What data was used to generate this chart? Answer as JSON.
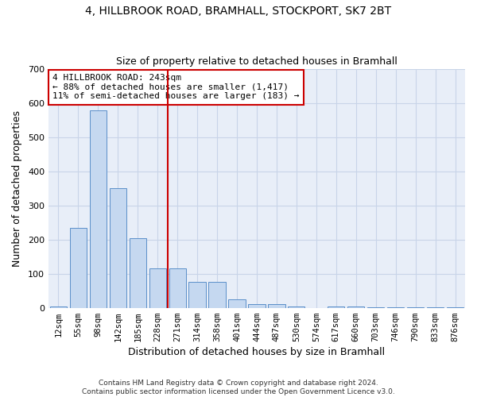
{
  "title1": "4, HILLBROOK ROAD, BRAMHALL, STOCKPORT, SK7 2BT",
  "title2": "Size of property relative to detached houses in Bramhall",
  "xlabel": "Distribution of detached houses by size in Bramhall",
  "ylabel": "Number of detached properties",
  "categories": [
    "12sqm",
    "55sqm",
    "98sqm",
    "142sqm",
    "185sqm",
    "228sqm",
    "271sqm",
    "314sqm",
    "358sqm",
    "401sqm",
    "444sqm",
    "487sqm",
    "530sqm",
    "574sqm",
    "617sqm",
    "660sqm",
    "703sqm",
    "746sqm",
    "790sqm",
    "833sqm",
    "876sqm"
  ],
  "values": [
    5,
    235,
    580,
    350,
    205,
    115,
    115,
    75,
    75,
    25,
    12,
    10,
    5,
    0,
    5,
    5,
    2,
    2,
    2,
    2,
    2
  ],
  "bar_color": "#c5d8f0",
  "bar_edge_color": "#5b8fc9",
  "grid_color": "#c8d4e8",
  "background_color": "#e8eef8",
  "red_line_x": 5.5,
  "annotation_text": "4 HILLBROOK ROAD: 243sqm\n← 88% of detached houses are smaller (1,417)\n11% of semi-detached houses are larger (183) →",
  "annotation_box_color": "#ffffff",
  "annotation_box_edge": "#cc0000",
  "footer": "Contains HM Land Registry data © Crown copyright and database right 2024.\nContains public sector information licensed under the Open Government Licence v3.0.",
  "ylim": [
    0,
    700
  ],
  "yticks": [
    0,
    100,
    200,
    300,
    400,
    500,
    600,
    700
  ]
}
